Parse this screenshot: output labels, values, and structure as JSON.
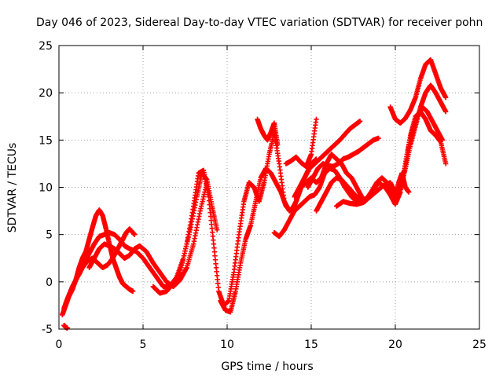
{
  "chart_data": {
    "type": "scatter",
    "title": "Day 046 of 2023, Sidereal Day-to-day VTEC variation (SDTVAR) for receiver pohn",
    "xlabel": "GPS time / hours",
    "ylabel": "SDTVAR / TECUs",
    "xlim": [
      0,
      25
    ],
    "ylim": [
      -5,
      25
    ],
    "xticks": [
      "0",
      "5",
      "10",
      "15",
      "20",
      "25"
    ],
    "yticks": [
      "-5",
      "0",
      "5",
      "10",
      "15",
      "20",
      "25"
    ],
    "grid": true,
    "legend": "none",
    "marker": "plus",
    "color": "#ff0000",
    "series": [
      {
        "x": [
          0.2,
          0.4,
          0.6,
          0.8,
          1.0,
          1.2,
          1.4,
          1.6,
          1.8,
          2.0,
          2.2,
          2.4,
          2.6,
          2.8,
          3.0,
          3.2,
          3.4,
          3.6,
          3.8,
          4.0,
          4.2,
          4.4
        ],
        "y": [
          -3.5,
          -2.5,
          -1.5,
          -0.8,
          0.2,
          1.5,
          2.5,
          3.2,
          4.5,
          5.8,
          7.0,
          7.6,
          7.0,
          5.6,
          4.0,
          2.5,
          1.5,
          0.5,
          -0.2,
          -0.5,
          -0.8,
          -1.0
        ]
      },
      {
        "x": [
          0.3,
          0.5,
          0.8,
          1.1,
          1.4,
          1.7,
          2.0,
          2.3,
          2.6,
          2.9,
          3.2,
          3.5,
          3.8,
          4.0,
          4.2,
          4.5
        ],
        "y": [
          -2.8,
          -1.8,
          -0.5,
          0.5,
          1.5,
          2.2,
          2.5,
          2.0,
          1.5,
          1.8,
          2.5,
          3.5,
          4.5,
          5.2,
          5.6,
          5.0
        ]
      },
      {
        "x": [
          1.2,
          1.5,
          1.8,
          2.1,
          2.4,
          2.7,
          3.0,
          3.3,
          3.6,
          3.9,
          4.2,
          4.6,
          5.0,
          5.4,
          5.8,
          6.2,
          6.6,
          7.0,
          7.4,
          7.8,
          8.2,
          8.5,
          8.8,
          9.1,
          9.4
        ],
        "y": [
          0.8,
          2.0,
          3.0,
          4.0,
          4.8,
          5.0,
          5.2,
          5.0,
          4.5,
          3.8,
          3.5,
          3.2,
          2.5,
          1.5,
          0.5,
          -0.5,
          -0.5,
          0.5,
          2.5,
          5.5,
          9.0,
          11.5,
          10.8,
          8.0,
          5.5
        ]
      },
      {
        "x": [
          1.8,
          2.1,
          2.4,
          2.7,
          3.0,
          3.3,
          3.6,
          3.9,
          4.2,
          4.5,
          4.8,
          5.2,
          5.6,
          6.0,
          6.4,
          6.8,
          7.2,
          7.6,
          8.0,
          8.4,
          8.8
        ],
        "y": [
          1.5,
          2.5,
          3.5,
          4.0,
          3.8,
          3.5,
          3.0,
          2.5,
          2.8,
          3.5,
          3.8,
          3.2,
          2.0,
          1.0,
          0.0,
          -0.5,
          0.2,
          1.5,
          4.0,
          7.5,
          10.5
        ]
      },
      {
        "x": [
          5.6,
          6.0,
          6.4,
          6.8,
          7.2,
          7.6,
          8.0,
          8.3,
          8.6,
          8.9,
          9.2,
          9.5,
          9.8,
          10.1,
          10.4,
          10.7,
          11.0,
          11.3,
          11.6,
          11.9,
          12.2,
          12.5,
          12.8,
          13.1,
          13.4,
          13.7,
          14.0,
          14.3,
          14.6,
          15.0,
          15.3
        ],
        "y": [
          -0.5,
          -1.2,
          -1.0,
          -0.2,
          1.0,
          4.0,
          8.0,
          11.5,
          11.8,
          9.0,
          4.0,
          -1.0,
          -2.5,
          -2.0,
          1.0,
          5.0,
          8.5,
          10.5,
          10.0,
          8.5,
          10.5,
          13.5,
          15.8,
          12.5,
          8.5,
          7.5,
          8.0,
          9.5,
          11.0,
          12.5,
          13.0
        ]
      },
      {
        "x": [
          9.6,
          9.9,
          10.2,
          10.5,
          10.8,
          11.1,
          11.4,
          11.7,
          12.0,
          12.3,
          12.6,
          12.9,
          13.2,
          13.5,
          13.8,
          14.1,
          14.4,
          14.7,
          15.0,
          15.3,
          15.6,
          15.9,
          16.2,
          16.5,
          16.8,
          17.1,
          17.4,
          17.7,
          18.0
        ],
        "y": [
          -2.0,
          -3.0,
          -3.2,
          -1.0,
          2.0,
          4.5,
          6.0,
          8.5,
          11.0,
          12.0,
          11.5,
          10.5,
          9.5,
          8.0,
          7.5,
          8.5,
          10.0,
          10.5,
          11.0,
          10.5,
          11.0,
          12.5,
          13.5,
          13.0,
          12.5,
          11.5,
          11.0,
          10.0,
          9.0
        ]
      },
      {
        "x": [
          11.8,
          12.0,
          12.2,
          12.4,
          12.6,
          12.8,
          13.0
        ],
        "y": [
          17.2,
          16.2,
          15.5,
          15.0,
          15.8,
          16.8,
          14.5
        ]
      },
      {
        "x": [
          12.8,
          13.1,
          13.4,
          13.7,
          14.0,
          14.3,
          14.6,
          14.9,
          15.2,
          15.5,
          15.8,
          16.1,
          16.4,
          16.7,
          17.0,
          17.4,
          17.8,
          18.2,
          18.6,
          19.0,
          19.4,
          19.7,
          20.0,
          20.3,
          20.6,
          20.9,
          21.2,
          21.5,
          21.8,
          22.1,
          22.4,
          22.7,
          23.0
        ],
        "y": [
          5.2,
          4.8,
          5.5,
          6.5,
          7.5,
          8.0,
          8.5,
          9.0,
          9.2,
          10.0,
          11.5,
          12.0,
          11.8,
          11.0,
          10.0,
          9.0,
          8.3,
          8.5,
          9.5,
          10.5,
          10.0,
          9.2,
          8.2,
          9.5,
          12.5,
          15.5,
          17.5,
          18.0,
          17.2,
          16.0,
          15.5,
          14.8,
          12.5
        ]
      },
      {
        "x": [
          15.3,
          15.6,
          15.9,
          16.2,
          16.5,
          16.8,
          17.1,
          17.4,
          17.7,
          18.0,
          18.3,
          18.6,
          18.9,
          19.2,
          19.5,
          19.8,
          20.1,
          20.4,
          20.7,
          21.0,
          21.3,
          21.6,
          21.9,
          22.2,
          22.5,
          22.8
        ],
        "y": [
          7.5,
          8.5,
          9.5,
          10.5,
          11.0,
          10.8,
          10.2,
          9.6,
          9.0,
          8.7,
          8.8,
          9.6,
          10.5,
          11.0,
          10.5,
          9.5,
          8.8,
          10.5,
          13.5,
          16.0,
          17.5,
          18.5,
          18.0,
          17.0,
          16.0,
          15.0
        ]
      },
      {
        "x": [
          16.5,
          16.9,
          17.3,
          17.7,
          18.1,
          18.5,
          18.9,
          19.3,
          19.7,
          20.0,
          20.3,
          20.6,
          20.9,
          21.2,
          21.5,
          21.8,
          22.1,
          22.4,
          22.7,
          23.0
        ],
        "y": [
          8.0,
          8.5,
          8.3,
          8.2,
          8.4,
          9.0,
          9.6,
          10.2,
          10.5,
          9.5,
          9.8,
          12.0,
          14.5,
          16.5,
          18.5,
          20.0,
          20.8,
          20.0,
          19.0,
          18.0
        ]
      },
      {
        "x": [
          14.8,
          15.1,
          15.4,
          15.7,
          16.0,
          16.3,
          16.6,
          16.9,
          17.2,
          17.5,
          17.8,
          18.1,
          18.4,
          18.7,
          19.0
        ],
        "y": [
          10.0,
          11.0,
          12.0,
          12.5,
          12.3,
          12.2,
          12.5,
          13.0,
          13.2,
          13.5,
          13.8,
          14.2,
          14.6,
          15.0,
          15.2
        ]
      },
      {
        "x": [
          14.0,
          14.3,
          14.6,
          14.9,
          15.2,
          15.5,
          15.8,
          16.1,
          16.4,
          16.7,
          17.0,
          17.3,
          17.6,
          17.9
        ],
        "y": [
          9.0,
          10.0,
          11.0,
          12.0,
          12.5,
          13.0,
          13.5,
          14.0,
          14.5,
          15.0,
          15.6,
          16.2,
          16.6,
          17.0
        ]
      },
      {
        "x": [
          13.5,
          13.8,
          14.1,
          14.4,
          14.7,
          15.0,
          15.3
        ],
        "y": [
          12.5,
          12.8,
          13.2,
          12.6,
          12.2,
          13.5,
          17.2
        ]
      },
      {
        "x": [
          19.7,
          20.0,
          20.3,
          20.6,
          20.9,
          21.2,
          21.5,
          21.8,
          22.1,
          22.4,
          22.7,
          23.0
        ],
        "y": [
          18.5,
          17.2,
          16.8,
          17.3,
          18.2,
          19.5,
          21.5,
          23.0,
          23.5,
          22.0,
          20.5,
          19.5
        ]
      },
      {
        "x": [
          20.0,
          20.2,
          20.4,
          20.6,
          20.8
        ],
        "y": [
          9.0,
          10.5,
          11.5,
          10.0,
          9.5
        ]
      },
      {
        "x": [
          0.3,
          0.4,
          0.5
        ],
        "y": [
          -4.6,
          -4.8,
          -4.9
        ]
      }
    ]
  }
}
